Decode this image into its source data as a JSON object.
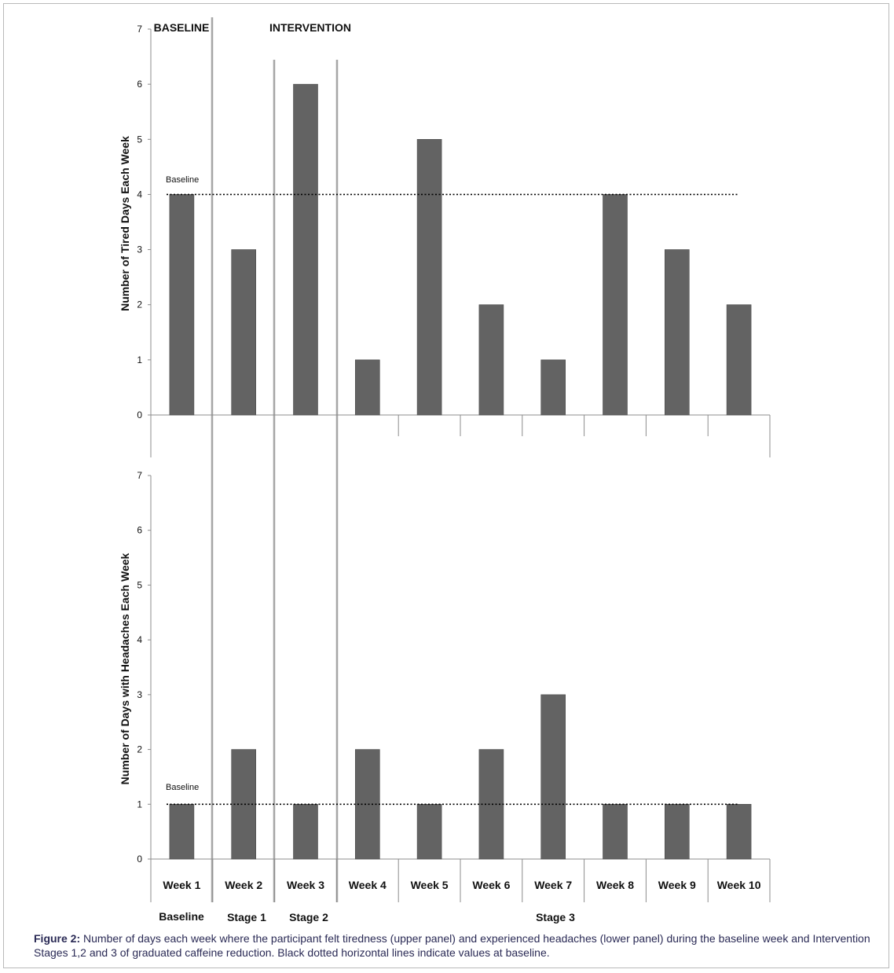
{
  "phase_labels": {
    "baseline": "BASELINE",
    "intervention": "INTERVENTION"
  },
  "stage_labels": {
    "baseline": "Baseline",
    "stage1": "Stage 1",
    "stage2": "Stage 2",
    "stage3": "Stage 3"
  },
  "caption": {
    "label": "Figure 2:",
    "text": "Number of days each week where the participant felt tiredness (upper panel) and experienced headaches (lower panel) during the baseline  week and  Intervention Stages 1,2 and 3 of graduated caffeine reduction. Black dotted horizontal lines indicate values at baseline."
  },
  "colors": {
    "bar": "#636363",
    "divider": "#a6a6a6",
    "axis": "#8c8c8c",
    "baseline_line": "#000000"
  },
  "chart_data": [
    {
      "type": "bar",
      "panel": "upper",
      "ylabel": "Number of Tired Days Each Week",
      "xlabel": "",
      "ylim": [
        0,
        7
      ],
      "yticks": [
        0,
        1,
        2,
        3,
        4,
        5,
        6,
        7
      ],
      "categories": [
        "Week 1",
        "Week 2",
        "Week 3",
        "Week 4",
        "Week 5",
        "Week 6",
        "Week 7",
        "Week 8",
        "Week 9",
        "Week 10"
      ],
      "values": [
        4,
        3,
        6,
        1,
        5,
        2,
        1,
        4,
        3,
        2
      ],
      "baseline": {
        "label": "Baseline",
        "value": 4,
        "style": "dotted"
      }
    },
    {
      "type": "bar",
      "panel": "lower",
      "ylabel": "Number of Days with Headaches  Each Week",
      "xlabel": "",
      "ylim": [
        0,
        7
      ],
      "yticks": [
        0,
        1,
        2,
        3,
        4,
        5,
        6,
        7
      ],
      "categories": [
        "Week 1",
        "Week 2",
        "Week 3",
        "Week 4",
        "Week 5",
        "Week 6",
        "Week 7",
        "Week 8",
        "Week 9",
        "Week 10"
      ],
      "values": [
        1,
        2,
        1,
        2,
        1,
        2,
        3,
        1,
        1,
        1
      ],
      "baseline": {
        "label": "Baseline",
        "value": 1,
        "style": "dotted"
      }
    }
  ]
}
